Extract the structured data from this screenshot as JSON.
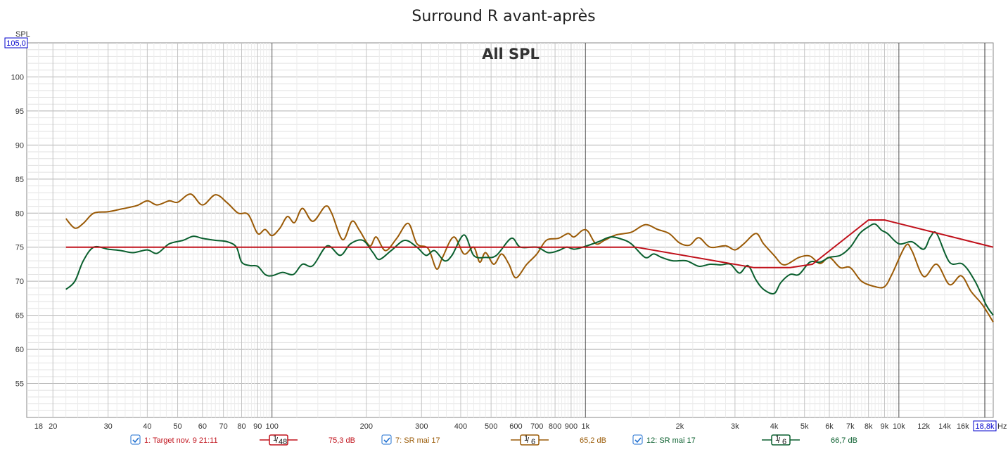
{
  "chart_data": {
    "type": "line",
    "title": "Surround R avant-après",
    "subtitle": "All SPL",
    "ylabel": "SPL",
    "xlabel": "Hz",
    "x_scale": "log",
    "xlim": [
      16.5,
      20000
    ],
    "ylim": [
      50,
      105
    ],
    "ytop_label": "105,0",
    "xright_label": "18,8k",
    "grid": true,
    "x_ticks": [
      {
        "v": 18,
        "label": "18"
      },
      {
        "v": 20,
        "label": "20"
      },
      {
        "v": 30,
        "label": "30"
      },
      {
        "v": 40,
        "label": "40"
      },
      {
        "v": 50,
        "label": "50"
      },
      {
        "v": 60,
        "label": "60"
      },
      {
        "v": 70,
        "label": "70"
      },
      {
        "v": 80,
        "label": "80"
      },
      {
        "v": 90,
        "label": "90"
      },
      {
        "v": 100,
        "label": "100"
      },
      {
        "v": 200,
        "label": "200"
      },
      {
        "v": 300,
        "label": "300"
      },
      {
        "v": 400,
        "label": "400"
      },
      {
        "v": 500,
        "label": "500"
      },
      {
        "v": 600,
        "label": "600"
      },
      {
        "v": 700,
        "label": "700"
      },
      {
        "v": 800,
        "label": "800"
      },
      {
        "v": 900,
        "label": "900"
      },
      {
        "v": 1000,
        "label": "1k"
      },
      {
        "v": 2000,
        "label": "2k"
      },
      {
        "v": 3000,
        "label": "3k"
      },
      {
        "v": 4000,
        "label": "4k"
      },
      {
        "v": 5000,
        "label": "5k"
      },
      {
        "v": 6000,
        "label": "6k"
      },
      {
        "v": 7000,
        "label": "7k"
      },
      {
        "v": 8000,
        "label": "8k"
      },
      {
        "v": 9000,
        "label": "9k"
      },
      {
        "v": 10000,
        "label": "10k"
      },
      {
        "v": 12000,
        "label": "12k"
      },
      {
        "v": 14000,
        "label": "14k"
      },
      {
        "v": 16000,
        "label": "16k"
      }
    ],
    "y_ticks": [
      {
        "v": 100,
        "label": "100"
      },
      {
        "v": 95,
        "label": "95"
      },
      {
        "v": 90,
        "label": "90"
      },
      {
        "v": 85,
        "label": "85"
      },
      {
        "v": 80,
        "label": "80"
      },
      {
        "v": 75,
        "label": "75"
      },
      {
        "v": 70,
        "label": "70"
      },
      {
        "v": 65,
        "label": "65"
      },
      {
        "v": 60,
        "label": "60"
      },
      {
        "v": 55,
        "label": "55"
      }
    ],
    "series": [
      {
        "name": "1: Target nov. 9 21:11",
        "color": "#c0101a",
        "smoothing": "1/48",
        "level": "75,3 dB",
        "points": [
          [
            22,
            75
          ],
          [
            1450,
            75
          ],
          [
            3450,
            72
          ],
          [
            4500,
            72
          ],
          [
            5300,
            72.5
          ],
          [
            8000,
            79
          ],
          [
            9000,
            79
          ],
          [
            20000,
            75
          ]
        ]
      },
      {
        "name": "7: SR mai 17",
        "color": "#9a5a06",
        "smoothing": "1/6",
        "level": "65,2 dB",
        "points": [
          [
            22,
            79.2
          ],
          [
            23.5,
            77.8
          ],
          [
            25,
            78.5
          ],
          [
            27,
            80
          ],
          [
            30,
            80.2
          ],
          [
            33,
            80.6
          ],
          [
            37,
            81.1
          ],
          [
            40,
            81.8
          ],
          [
            43,
            81.2
          ],
          [
            47,
            81.8
          ],
          [
            50,
            81.6
          ],
          [
            55,
            82.8
          ],
          [
            60,
            81.2
          ],
          [
            66,
            82.7
          ],
          [
            72,
            81.5
          ],
          [
            78,
            80
          ],
          [
            84,
            79.8
          ],
          [
            90,
            77
          ],
          [
            95,
            77.6
          ],
          [
            100,
            76.7
          ],
          [
            106,
            77.8
          ],
          [
            112,
            79.5
          ],
          [
            118,
            78.6
          ],
          [
            125,
            80.7
          ],
          [
            135,
            78.8
          ],
          [
            148,
            81
          ],
          [
            155,
            80
          ],
          [
            168,
            76.1
          ],
          [
            180,
            78.8
          ],
          [
            190,
            77.5
          ],
          [
            205,
            75.2
          ],
          [
            215,
            76.5
          ],
          [
            230,
            74.5
          ],
          [
            250,
            76.3
          ],
          [
            272,
            78.5
          ],
          [
            290,
            75.5
          ],
          [
            315,
            74.8
          ],
          [
            335,
            71.8
          ],
          [
            350,
            73.5
          ],
          [
            380,
            76.5
          ],
          [
            410,
            74
          ],
          [
            440,
            75
          ],
          [
            460,
            72.8
          ],
          [
            480,
            74.2
          ],
          [
            510,
            72.5
          ],
          [
            540,
            74
          ],
          [
            570,
            72.5
          ],
          [
            600,
            70.5
          ],
          [
            650,
            72.5
          ],
          [
            700,
            74
          ],
          [
            750,
            76
          ],
          [
            820,
            76.3
          ],
          [
            880,
            77
          ],
          [
            920,
            76.5
          ],
          [
            980,
            77.5
          ],
          [
            1020,
            77.3
          ],
          [
            1080,
            75.5
          ],
          [
            1150,
            76
          ],
          [
            1250,
            76.8
          ],
          [
            1400,
            77.2
          ],
          [
            1550,
            78.3
          ],
          [
            1700,
            77.6
          ],
          [
            1850,
            77
          ],
          [
            2000,
            75.6
          ],
          [
            2150,
            75.3
          ],
          [
            2300,
            76.4
          ],
          [
            2500,
            75
          ],
          [
            2800,
            75.2
          ],
          [
            3000,
            74.6
          ],
          [
            3200,
            75.5
          ],
          [
            3500,
            77
          ],
          [
            3700,
            75.5
          ],
          [
            4000,
            73.8
          ],
          [
            4300,
            72.4
          ],
          [
            4800,
            73.5
          ],
          [
            5200,
            73.7
          ],
          [
            5600,
            72.6
          ],
          [
            6000,
            73.5
          ],
          [
            6500,
            72
          ],
          [
            7000,
            72
          ],
          [
            7600,
            70
          ],
          [
            8400,
            69.2
          ],
          [
            9000,
            69.2
          ],
          [
            9500,
            71
          ],
          [
            10500,
            75.2
          ],
          [
            11000,
            74.5
          ],
          [
            12000,
            70.7
          ],
          [
            13200,
            72.5
          ],
          [
            14500,
            69.5
          ],
          [
            15800,
            70.8
          ],
          [
            17000,
            68.5
          ],
          [
            18500,
            66.5
          ],
          [
            20000,
            64
          ]
        ]
      },
      {
        "name": "12: SR mai 17",
        "color": "#0a5f2e",
        "smoothing": "1/6",
        "level": "66,7 dB",
        "points": [
          [
            22,
            68.8
          ],
          [
            23.5,
            70
          ],
          [
            25,
            73
          ],
          [
            27,
            75
          ],
          [
            30,
            74.7
          ],
          [
            33,
            74.5
          ],
          [
            36,
            74.2
          ],
          [
            40,
            74.6
          ],
          [
            43,
            74.1
          ],
          [
            47,
            75.5
          ],
          [
            52,
            76
          ],
          [
            56,
            76.6
          ],
          [
            60,
            76.3
          ],
          [
            66,
            76
          ],
          [
            72,
            75.8
          ],
          [
            77,
            75
          ],
          [
            80,
            72.8
          ],
          [
            85,
            72.3
          ],
          [
            90,
            72.2
          ],
          [
            95,
            71
          ],
          [
            100,
            70.8
          ],
          [
            108,
            71.3
          ],
          [
            117,
            71
          ],
          [
            125,
            72.5
          ],
          [
            135,
            72.3
          ],
          [
            150,
            75.2
          ],
          [
            165,
            73.8
          ],
          [
            178,
            75.5
          ],
          [
            195,
            76
          ],
          [
            210,
            74.2
          ],
          [
            220,
            73.2
          ],
          [
            240,
            74.5
          ],
          [
            265,
            76
          ],
          [
            290,
            75
          ],
          [
            310,
            73.8
          ],
          [
            330,
            74.5
          ],
          [
            355,
            73
          ],
          [
            375,
            73.8
          ],
          [
            410,
            76.8
          ],
          [
            440,
            73.8
          ],
          [
            480,
            73.5
          ],
          [
            520,
            73.8
          ],
          [
            580,
            76.3
          ],
          [
            620,
            75
          ],
          [
            700,
            75
          ],
          [
            760,
            74.2
          ],
          [
            820,
            74.5
          ],
          [
            870,
            75
          ],
          [
            920,
            74.7
          ],
          [
            980,
            75
          ],
          [
            1100,
            75.8
          ],
          [
            1200,
            76.5
          ],
          [
            1300,
            76.2
          ],
          [
            1400,
            75.5
          ],
          [
            1550,
            73.5
          ],
          [
            1650,
            74
          ],
          [
            1750,
            73.5
          ],
          [
            1900,
            73
          ],
          [
            2100,
            73
          ],
          [
            2300,
            72.2
          ],
          [
            2500,
            72.5
          ],
          [
            2700,
            72.4
          ],
          [
            2900,
            72.5
          ],
          [
            3100,
            71.2
          ],
          [
            3300,
            72.3
          ],
          [
            3500,
            70.2
          ],
          [
            3700,
            68.8
          ],
          [
            4000,
            68.2
          ],
          [
            4200,
            69.8
          ],
          [
            4500,
            71
          ],
          [
            4800,
            71
          ],
          [
            5200,
            72.8
          ],
          [
            5600,
            72.8
          ],
          [
            6000,
            73.5
          ],
          [
            6500,
            73.8
          ],
          [
            7000,
            75
          ],
          [
            7500,
            77
          ],
          [
            8000,
            78
          ],
          [
            8400,
            78.4
          ],
          [
            8800,
            77.5
          ],
          [
            9200,
            77
          ],
          [
            10000,
            75.5
          ],
          [
            11000,
            75.8
          ],
          [
            12000,
            74.7
          ],
          [
            12600,
            76.5
          ],
          [
            13200,
            77
          ],
          [
            14500,
            72.8
          ],
          [
            16000,
            72.5
          ],
          [
            17500,
            70
          ],
          [
            19000,
            66.5
          ],
          [
            20000,
            65
          ]
        ]
      }
    ]
  },
  "legend": [
    {
      "label": "1: Target nov. 9 21:11",
      "smoothing_num": "1",
      "smoothing_den": "48",
      "level": "75,3 dB",
      "color": "#c0101a"
    },
    {
      "label": "7: SR mai 17",
      "smoothing_num": "1",
      "smoothing_den": "6",
      "level": "65,2 dB",
      "color": "#9a5a06"
    },
    {
      "label": "12: SR mai 17",
      "smoothing_num": "1",
      "smoothing_den": "6",
      "level": "66,7 dB",
      "color": "#0a5f2e"
    }
  ],
  "colors": {
    "checkbox": "#1f6fd0",
    "axis_box": "#0000cc",
    "grid_major": "#b0b0b0",
    "grid_minor": "#e2e2e2"
  }
}
